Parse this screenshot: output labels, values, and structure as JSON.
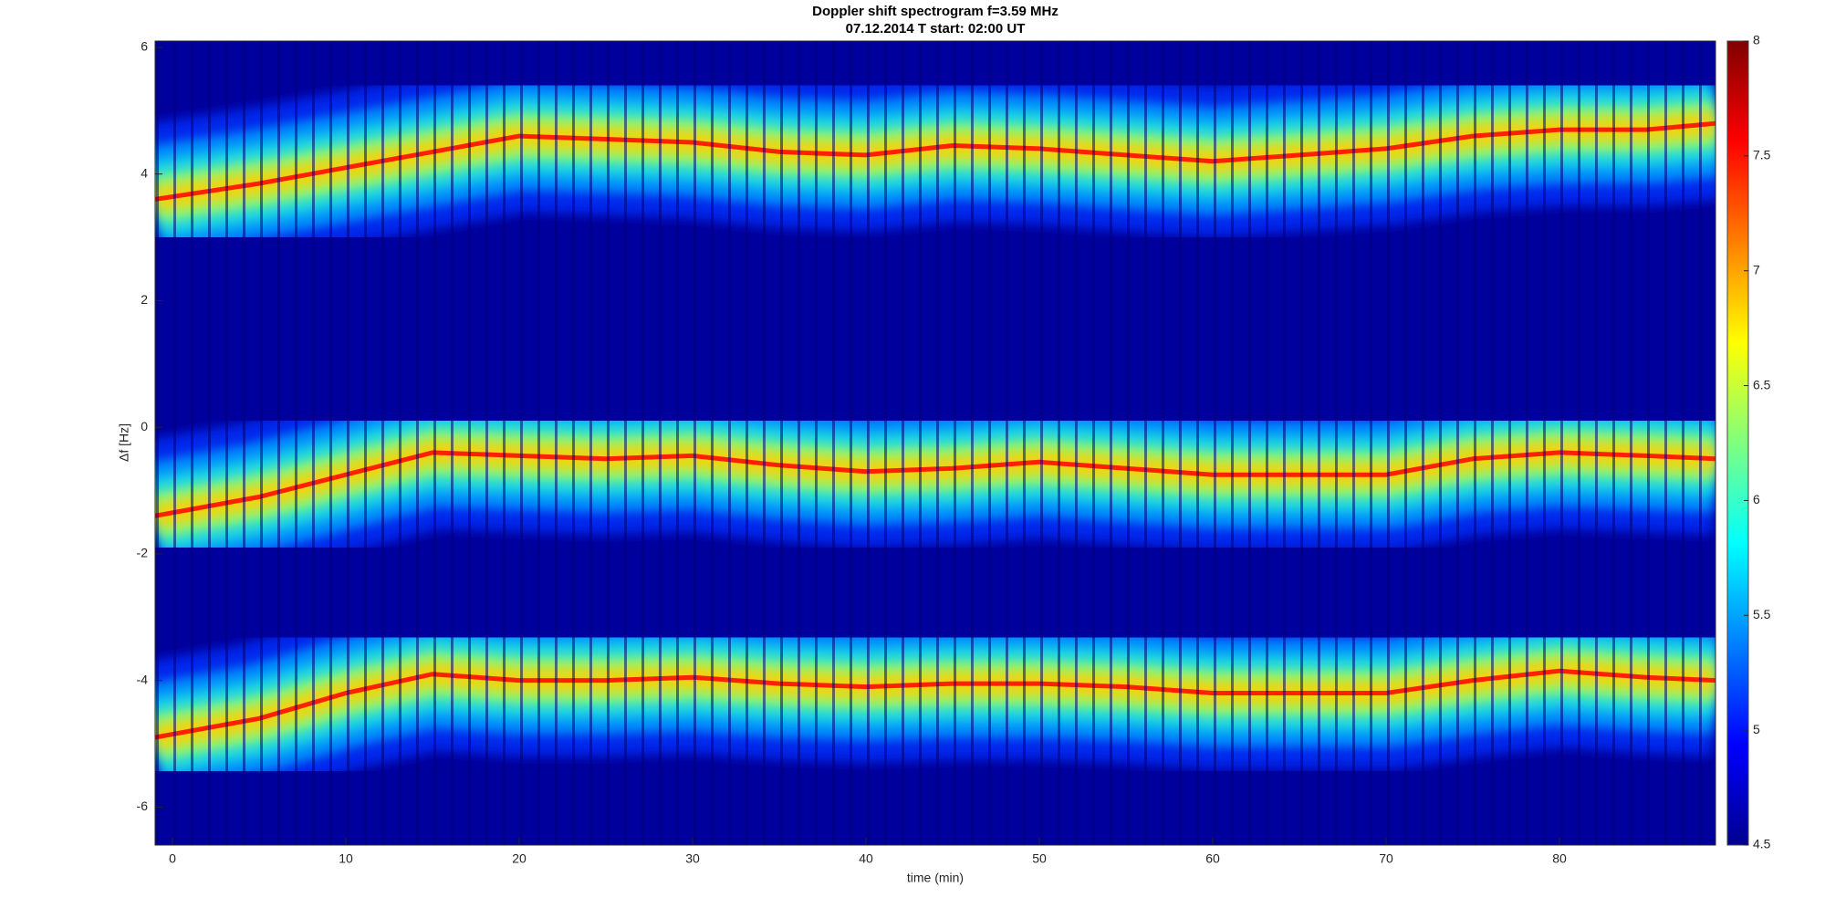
{
  "chart_data": {
    "type": "spectrogram",
    "title": "Doppler shift spectrogram f=3.59 MHz",
    "subtitle": "07.12.2014   T start: 02:00 UT",
    "xlabel": "time (min)",
    "ylabel": "Δf [Hz]",
    "xlim": [
      -1,
      89
    ],
    "xticks": [
      0,
      10,
      20,
      30,
      40,
      50,
      60,
      70,
      80
    ],
    "ylim": [
      -6.6,
      6.1
    ],
    "yticks": [
      -6,
      -4,
      -2,
      0,
      2,
      4,
      6
    ],
    "x": [
      -1,
      5,
      10,
      15,
      20,
      25,
      30,
      35,
      40,
      45,
      50,
      55,
      60,
      65,
      70,
      75,
      80,
      85,
      89
    ],
    "series": [
      {
        "color": "#ff2000",
        "values": [
          3.6,
          3.85,
          4.1,
          4.35,
          4.6,
          4.55,
          4.5,
          4.35,
          4.3,
          4.45,
          4.4,
          4.3,
          4.2,
          4.3,
          4.4,
          4.6,
          4.7,
          4.7,
          4.8
        ]
      },
      {
        "color": "#ff2000",
        "values": [
          -1.4,
          -1.1,
          -0.75,
          -0.4,
          -0.45,
          -0.5,
          -0.45,
          -0.6,
          -0.7,
          -0.65,
          -0.55,
          -0.65,
          -0.75,
          -0.75,
          -0.75,
          -0.5,
          -0.4,
          -0.45,
          -0.5
        ]
      },
      {
        "color": "#ff2000",
        "values": [
          -4.9,
          -4.6,
          -4.2,
          -3.9,
          -4.0,
          -4.0,
          -3.95,
          -4.05,
          -4.1,
          -4.05,
          -4.05,
          -4.1,
          -4.2,
          -4.2,
          -4.2,
          -4.0,
          -3.85,
          -3.95,
          -4.0
        ]
      }
    ],
    "colorbar": {
      "lim": [
        4.5,
        8
      ],
      "ticks": [
        4.5,
        5,
        5.5,
        6,
        6.5,
        7,
        7.5,
        8
      ]
    }
  }
}
